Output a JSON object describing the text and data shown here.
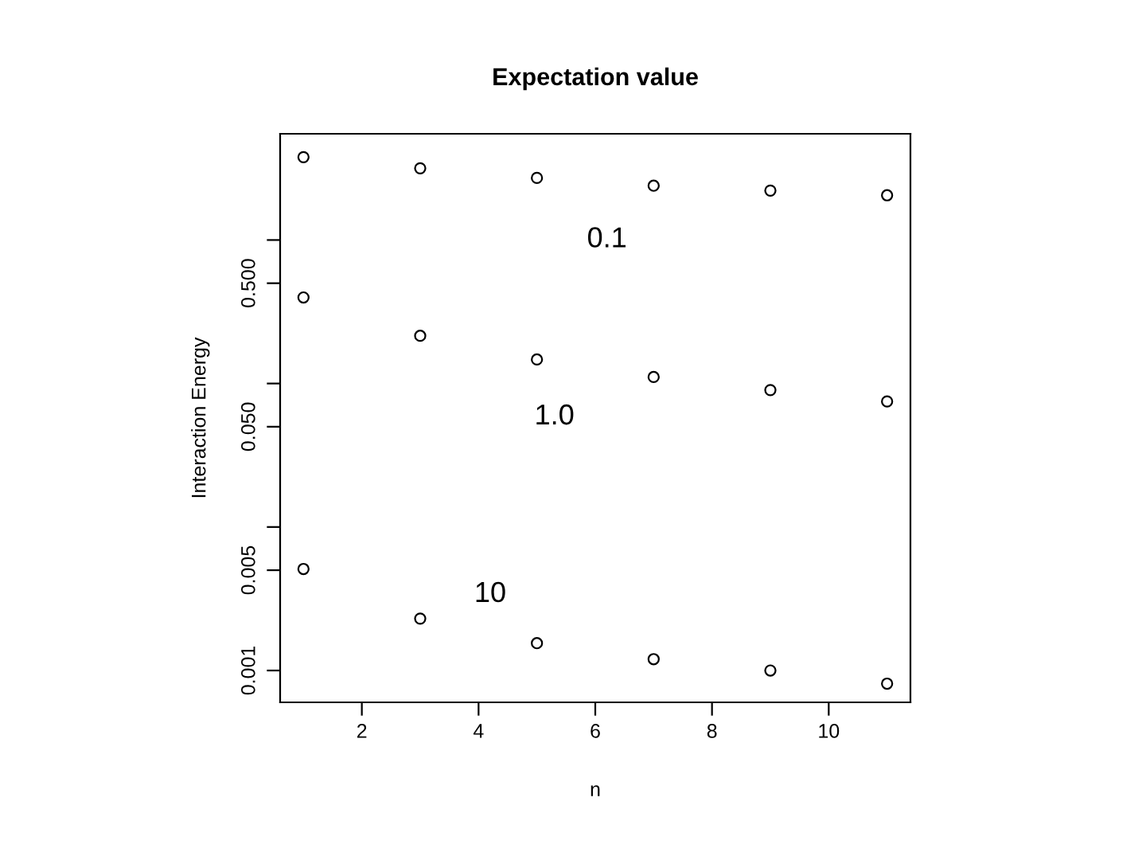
{
  "chart_data": {
    "type": "scatter",
    "title": "Expectation value",
    "xlabel": "n",
    "ylabel": "Interaction Energy",
    "x": [
      1,
      3,
      5,
      7,
      9,
      11
    ],
    "series": [
      {
        "name": "0.1",
        "color": "#000000",
        "values": [
          3.78,
          3.16,
          2.71,
          2.39,
          2.21,
          2.05
        ]
      },
      {
        "name": "1.0",
        "color": "#000000",
        "values": [
          0.398,
          0.215,
          0.147,
          0.111,
          0.09,
          0.075
        ]
      },
      {
        "name": "10",
        "color": "#000000",
        "values": [
          0.0051,
          0.0023,
          0.00155,
          0.0012,
          0.001,
          0.00081
        ]
      }
    ],
    "log": "y",
    "xlim": [
      0.6,
      11.4
    ],
    "ylim": [
      0.0006,
      5.5
    ],
    "xticks": [
      2,
      4,
      6,
      8,
      10
    ],
    "yticks": [
      0.001,
      0.005,
      {
        "value": 0.01,
        "label": null
      },
      {
        "value": 0.05,
        "label": "0.050"
      },
      {
        "value": 0.1,
        "label": null
      },
      {
        "value": 0.5,
        "label": "0.500"
      },
      {
        "value": 1,
        "label": null
      }
    ],
    "marker": "circle",
    "grid": false,
    "legend": false
  }
}
